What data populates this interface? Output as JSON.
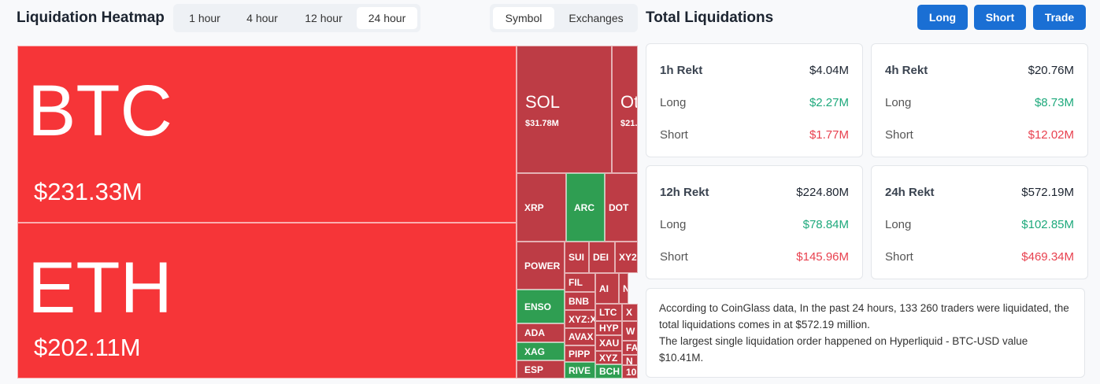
{
  "heatmap": {
    "title": "Liquidation Heatmap",
    "time_tabs": [
      "1 hour",
      "4 hour",
      "12 hour",
      "24 hour"
    ],
    "view_tabs": [
      "Symbol",
      "Exchanges"
    ],
    "tiles": [
      {
        "label": "BTC",
        "value": "$231.33M"
      },
      {
        "label": "ETH",
        "value": "$202.11M"
      },
      {
        "label": "SOL",
        "value": "$31.78M"
      },
      {
        "label": "Ot",
        "value": "$21."
      },
      {
        "label": "XRP"
      },
      {
        "label": "ARC"
      },
      {
        "label": "DOT"
      },
      {
        "label": "POWER"
      },
      {
        "label": "SUI"
      },
      {
        "label": "DEI"
      },
      {
        "label": "XY2"
      },
      {
        "label": "FIL"
      },
      {
        "label": "BNB"
      },
      {
        "label": "XYZ:X"
      },
      {
        "label": "AVAX"
      },
      {
        "label": "PIPP"
      },
      {
        "label": "RIVE"
      },
      {
        "label": "ENSO"
      },
      {
        "label": "ADA"
      },
      {
        "label": "XAG"
      },
      {
        "label": "ESP"
      },
      {
        "label": "AI"
      },
      {
        "label": "N"
      },
      {
        "label": "LTC"
      },
      {
        "label": "X"
      },
      {
        "label": "HYP"
      },
      {
        "label": "W"
      },
      {
        "label": "XAU"
      },
      {
        "label": "FA"
      },
      {
        "label": "XYZ"
      },
      {
        "label": "N"
      },
      {
        "label": "BCH"
      },
      {
        "label": "10"
      }
    ]
  },
  "totals": {
    "title": "Total Liquidations",
    "buttons": [
      "Long",
      "Short",
      "Trade"
    ],
    "cards": [
      {
        "period": "1h Rekt",
        "total": "$4.04M",
        "long_label": "Long",
        "long": "$2.27M",
        "short_label": "Short",
        "short": "$1.77M"
      },
      {
        "period": "4h Rekt",
        "total": "$20.76M",
        "long_label": "Long",
        "long": "$8.73M",
        "short_label": "Short",
        "short": "$12.02M"
      },
      {
        "period": "12h Rekt",
        "total": "$224.80M",
        "long_label": "Long",
        "long": "$78.84M",
        "short_label": "Short",
        "short": "$145.96M"
      },
      {
        "period": "24h Rekt",
        "total": "$572.19M",
        "long_label": "Long",
        "long": "$102.85M",
        "short_label": "Short",
        "short": "$469.34M"
      }
    ],
    "summary": [
      "According to CoinGlass data, In the past 24 hours, 133 260 traders were liquidated, the total liquidations comes in at $572.19 million.",
      "The largest single liquidation order happened on Hyperliquid - BTC-USD value $10.41M."
    ]
  }
}
